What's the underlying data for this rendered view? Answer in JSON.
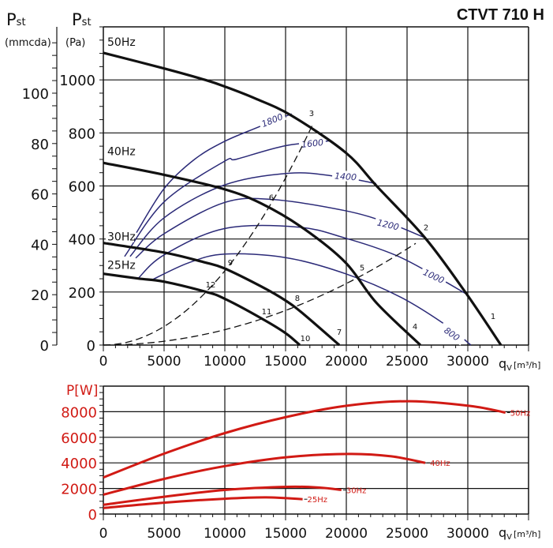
{
  "chart_data": [
    {
      "type": "line",
      "title": "CTVT 710 H",
      "ylabel_main": "P",
      "ylabel_sub": "st",
      "yunit_pa": "(Pa)",
      "yunit_mm": "(mmcda)",
      "xlabel_main": "q",
      "xlabel_sub": "V",
      "xunit": "[m³/h]",
      "xlim": [
        0,
        35000
      ],
      "ylim": [
        0,
        1200
      ],
      "y2lim_mmcda": [
        0,
        126
      ],
      "grid": true,
      "xticks": [
        "0",
        "5000",
        "10000",
        "15000",
        "20000",
        "25000",
        "30000"
      ],
      "yticks_pa": [
        "0",
        "200",
        "400",
        "600",
        "800",
        "1000"
      ],
      "yticks_mm": [
        "0",
        "20",
        "40",
        "60",
        "80",
        "100"
      ],
      "colors": {
        "fan_curve": "#111111",
        "rpm_curve": "#2b2a78",
        "system_curve": "#111111"
      },
      "series": [
        {
          "name": "50Hz",
          "points": [
            [
              0,
              1102
            ],
            [
              5000,
              1043
            ],
            [
              8380,
              1000
            ],
            [
              10000,
              975
            ],
            [
              12500,
              930
            ],
            [
              15500,
              865
            ],
            [
              19940,
              726
            ],
            [
              22530,
              598
            ],
            [
              26560,
              400
            ],
            [
              29940,
              190
            ],
            [
              32730,
              0
            ]
          ]
        },
        {
          "name": "40Hz",
          "points": [
            [
              0,
              687
            ],
            [
              5000,
              642
            ],
            [
              9930,
              588
            ],
            [
              13000,
              534
            ],
            [
              16500,
              439
            ],
            [
              19940,
              311
            ],
            [
              22470,
              160
            ],
            [
              26100,
              0
            ]
          ]
        },
        {
          "name": "30Hz",
          "points": [
            [
              0,
              385
            ],
            [
              5000,
              349
            ],
            [
              8250,
              313
            ],
            [
              9930,
              290
            ],
            [
              13000,
              221
            ],
            [
              15000,
              168
            ],
            [
              16500,
              116
            ],
            [
              19420,
              0
            ]
          ]
        },
        {
          "name": "25Hz",
          "points": [
            [
              0,
              269
            ],
            [
              2860,
              251
            ],
            [
              5000,
              239
            ],
            [
              8500,
              200
            ],
            [
              9930,
              176
            ],
            [
              13000,
              101
            ],
            [
              15000,
              45
            ],
            [
              16170,
              0
            ]
          ]
        }
      ],
      "rpm_curves": [
        {
          "name": "1800",
          "label_at": [
            13900,
            848
          ],
          "points": [
            [
              2730,
              424
            ],
            [
              5000,
              590
            ],
            [
              7500,
              700
            ],
            [
              9930,
              767
            ],
            [
              12700,
              821
            ],
            [
              15500,
              872
            ]
          ]
        },
        {
          "name": "1600",
          "label_at": [
            17210,
            761
          ],
          "points": [
            [
              1750,
              334
            ],
            [
              5000,
              540
            ],
            [
              9930,
              692
            ],
            [
              10970,
              701
            ],
            [
              15000,
              752
            ],
            [
              18630,
              770
            ]
          ]
        },
        {
          "name": "1400",
          "label_at": [
            19940,
            636
          ],
          "points": [
            [
              2200,
              334
            ],
            [
              5000,
              480
            ],
            [
              9930,
              603
            ],
            [
              15300,
              648
            ],
            [
              19200,
              636
            ],
            [
              22460,
              609
            ]
          ]
        },
        {
          "name": "1200",
          "label_at": [
            23440,
            454
          ],
          "points": [
            [
              2660,
              328
            ],
            [
              5000,
              420
            ],
            [
              9930,
              537
            ],
            [
              13900,
              549
            ],
            [
              19870,
              507
            ],
            [
              23500,
              460
            ],
            [
              26560,
              403
            ]
          ]
        },
        {
          "name": "1000",
          "label_at": [
            27200,
            260
          ],
          "points": [
            [
              2860,
              251
            ],
            [
              5000,
              340
            ],
            [
              9930,
              439
            ],
            [
              16030,
              445
            ],
            [
              19940,
              403
            ],
            [
              24000,
              340
            ],
            [
              27000,
              269
            ],
            [
              29940,
              191
            ]
          ]
        },
        {
          "name": "800",
          "label_at": [
            28700,
            42
          ],
          "points": [
            [
              3960,
              245
            ],
            [
              7000,
              310
            ],
            [
              10000,
              343
            ],
            [
              15000,
              330
            ],
            [
              19940,
              269
            ],
            [
              24500,
              180
            ],
            [
              28300,
              72
            ],
            [
              30250,
              0
            ]
          ]
        }
      ],
      "system_curves": [
        {
          "k": 2.8e-06,
          "q_max": 17300
        },
        {
          "k": 5.8e-07,
          "q_max": 26600
        }
      ],
      "point_labels": [
        {
          "name": "1",
          "at": [
            32080,
            110
          ]
        },
        {
          "name": "2",
          "at": [
            26560,
            445
          ]
        },
        {
          "name": "3",
          "at": [
            17140,
            875
          ]
        },
        {
          "name": "4",
          "at": [
            25650,
            72
          ]
        },
        {
          "name": "5",
          "at": [
            21300,
            293
          ]
        },
        {
          "name": "6",
          "at": [
            13830,
            558
          ]
        },
        {
          "name": "7",
          "at": [
            19420,
            51
          ]
        },
        {
          "name": "8",
          "at": [
            15970,
            179
          ]
        },
        {
          "name": "9",
          "at": [
            10450,
            313
          ]
        },
        {
          "name": "10",
          "at": [
            16620,
            27
          ]
        },
        {
          "name": "11",
          "at": [
            13440,
            128
          ]
        },
        {
          "name": "12",
          "at": [
            8830,
            230
          ]
        }
      ]
    },
    {
      "type": "line",
      "ylabel": "P[W]",
      "xlabel_main": "q",
      "xlabel_sub": "V",
      "xunit": "[m³/h]",
      "xlim": [
        0,
        35000
      ],
      "ylim": [
        0,
        10000
      ],
      "grid": true,
      "xticks": [
        "0",
        "5000",
        "10000",
        "15000",
        "20000",
        "25000",
        "30000"
      ],
      "yticks": [
        "0",
        "2000",
        "4000",
        "6000",
        "8000"
      ],
      "colors": {
        "power_curve": "#d11a14",
        "axis_text": "#d11a14"
      },
      "series": [
        {
          "name": "50Hz",
          "points": [
            [
              0,
              2860
            ],
            [
              5000,
              4720
            ],
            [
              10000,
              6330
            ],
            [
              15200,
              7620
            ],
            [
              20200,
              8490
            ],
            [
              25200,
              8820
            ],
            [
              30200,
              8450
            ],
            [
              33100,
              7930
            ]
          ]
        },
        {
          "name": "40Hz",
          "points": [
            [
              0,
              1510
            ],
            [
              5000,
              2750
            ],
            [
              10000,
              3750
            ],
            [
              15200,
              4450
            ],
            [
              20200,
              4700
            ],
            [
              23700,
              4510
            ],
            [
              26500,
              4000
            ]
          ]
        },
        {
          "name": "30Hz",
          "points": [
            [
              0,
              725
            ],
            [
              5000,
              1350
            ],
            [
              10000,
              1880
            ],
            [
              15200,
              2130
            ],
            [
              17800,
              2070
            ],
            [
              19600,
              1880
            ]
          ]
        },
        {
          "name": "25Hz",
          "points": [
            [
              0,
              475
            ],
            [
              5000,
              890
            ],
            [
              10000,
              1200
            ],
            [
              13400,
              1300
            ],
            [
              16400,
              1160
            ]
          ]
        }
      ]
    }
  ]
}
